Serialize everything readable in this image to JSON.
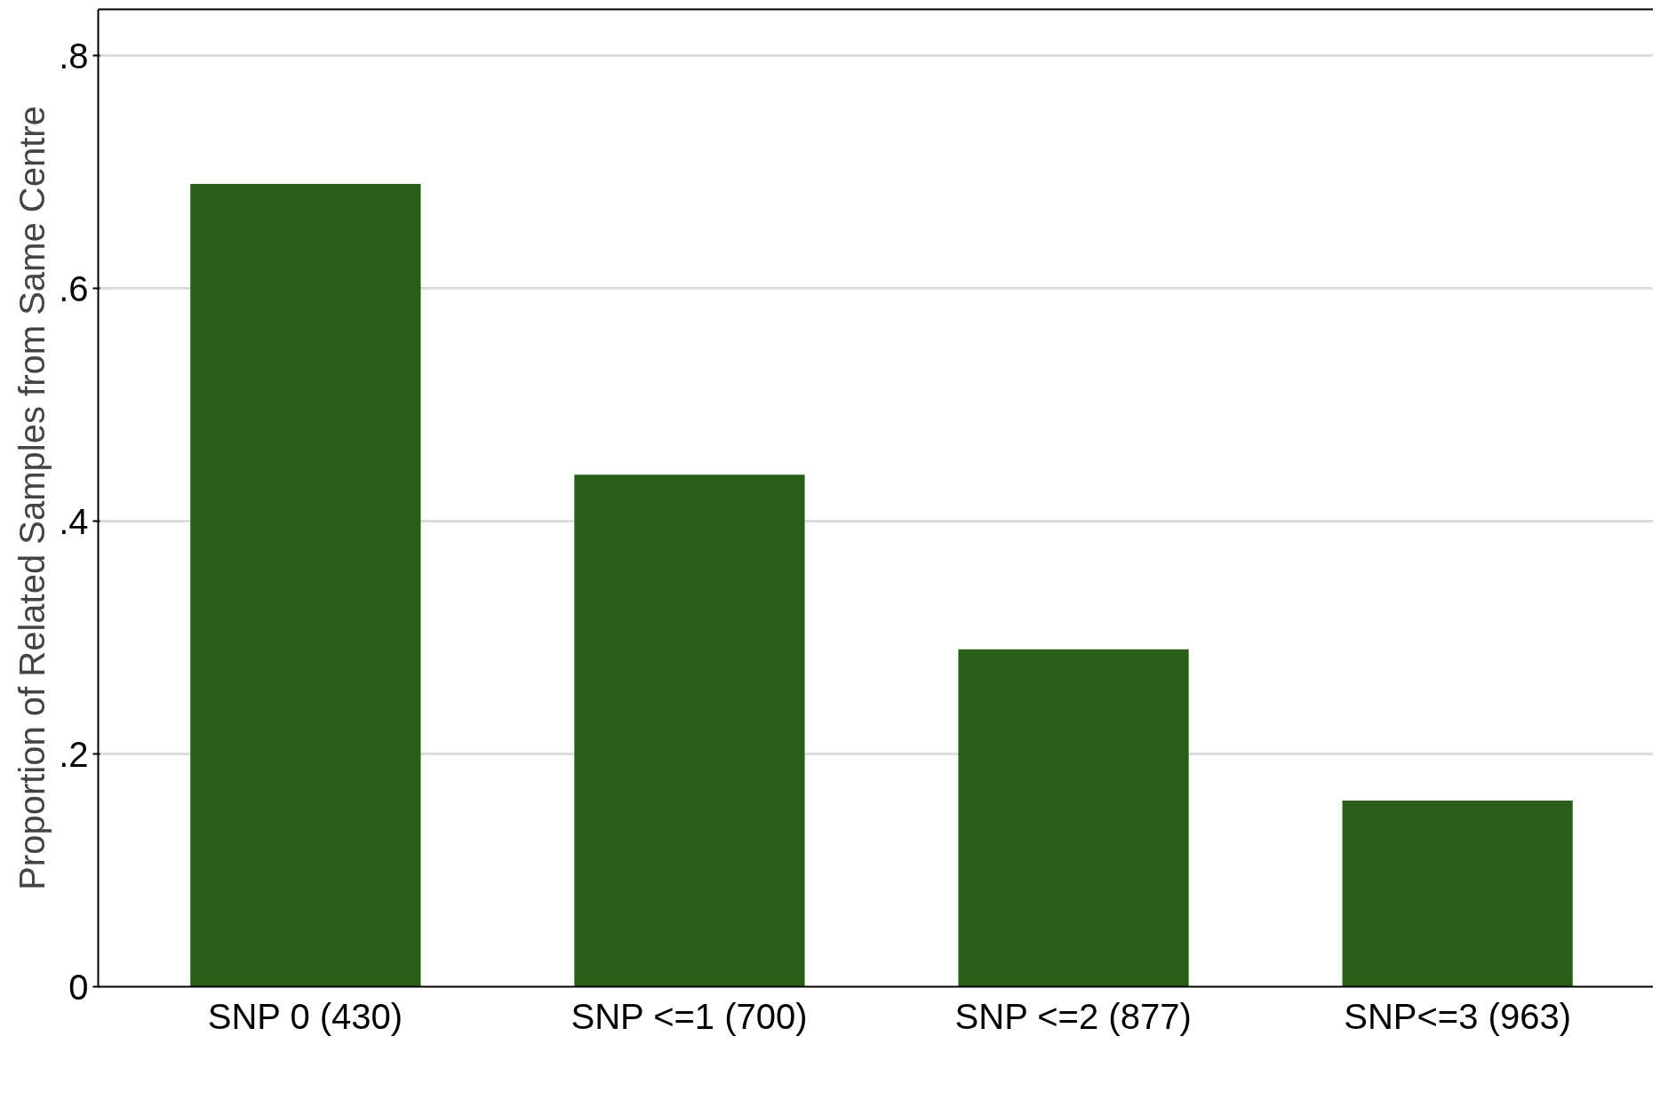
{
  "chart_data": {
    "type": "bar",
    "ylabel": "Proportion of Related Samples from Same Centre",
    "categories": [
      "SNP 0 (430)",
      "SNP <=1 (700)",
      "SNP <=2 (877)",
      "SNP<=3 (963)"
    ],
    "values": [
      0.69,
      0.44,
      0.29,
      0.16
    ],
    "color": "#2a5e19",
    "ylim": [
      0,
      0.84
    ],
    "yticks": [
      0,
      {
        "value": 0.2,
        "label": ".2"
      },
      {
        "value": 0.4,
        "label": ".4"
      },
      {
        "value": 0.6,
        "label": ".6"
      },
      {
        "value": 0.8,
        "label": ".8"
      }
    ],
    "grid": "y"
  }
}
